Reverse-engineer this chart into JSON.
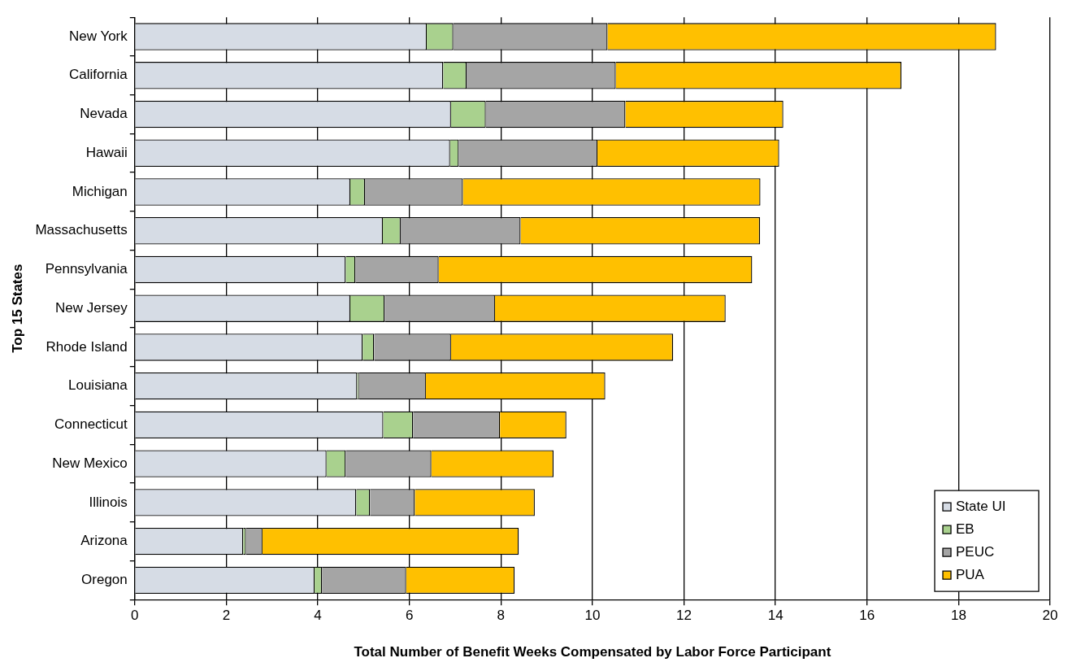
{
  "chart_data": {
    "type": "bar",
    "orientation": "horizontal",
    "stacked": true,
    "xlabel": "Total Number of Benefit Weeks Compensated by Labor Force Participant",
    "ylabel": "Top 15 States",
    "categories": [
      "New York",
      "California",
      "Nevada",
      "Hawaii",
      "Michigan",
      "Massachusetts",
      "Pennsylvania",
      "New Jersey",
      "Rhode Island",
      "Louisiana",
      "Connecticut",
      "New Mexico",
      "Illinois",
      "Arizona",
      "Oregon"
    ],
    "series": [
      {
        "name": "State UI",
        "color": "#d6dce5",
        "values": [
          6.38,
          6.74,
          6.91,
          6.89,
          4.71,
          5.42,
          4.61,
          4.71,
          4.98,
          4.86,
          5.43,
          4.19,
          4.84,
          2.37,
          3.93
        ]
      },
      {
        "name": "EB",
        "color": "#a9d18e",
        "values": [
          0.58,
          0.51,
          0.76,
          0.19,
          0.32,
          0.39,
          0.21,
          0.75,
          0.25,
          0.04,
          0.65,
          0.42,
          0.3,
          0.06,
          0.16
        ]
      },
      {
        "name": "PEUC",
        "color": "#a5a5a5",
        "values": [
          3.37,
          3.26,
          3.05,
          3.03,
          2.14,
          2.62,
          1.82,
          2.41,
          1.68,
          1.46,
          1.9,
          1.87,
          0.98,
          0.36,
          1.84
        ]
      },
      {
        "name": "PUA",
        "color": "#ffc000",
        "values": [
          8.49,
          6.24,
          3.45,
          3.97,
          6.5,
          5.23,
          6.85,
          5.04,
          4.85,
          3.92,
          1.45,
          2.67,
          2.62,
          5.6,
          2.37
        ]
      }
    ],
    "xlim": [
      0,
      20
    ],
    "xticks": [
      0,
      2,
      4,
      6,
      8,
      10,
      12,
      14,
      16,
      18,
      20
    ],
    "grid": "x",
    "legend": "bottom right"
  }
}
